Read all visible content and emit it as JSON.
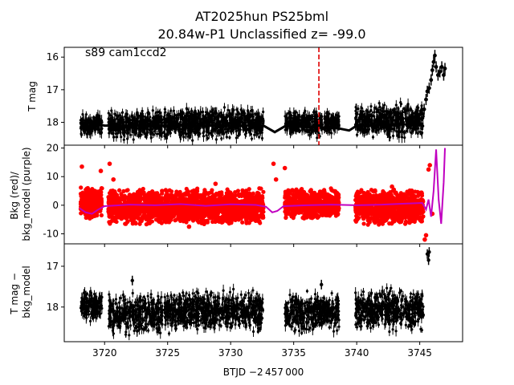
{
  "title": {
    "line1": "AT2025hun  PS25bml",
    "line2": "20.84w-P1 Unclassified z= -99.0"
  },
  "chart_data": [
    {
      "panel": "top",
      "type": "scatter",
      "annotation": "s89 cam1ccd2",
      "ylabel": "T mag",
      "inverted_y": true,
      "xlim": [
        3716.8,
        3748.4
      ],
      "ylim": [
        18.7,
        15.7
      ],
      "yticks": [
        16,
        17,
        18
      ],
      "vline": {
        "x": 3737.0,
        "color": "#e00000",
        "style": "dashed"
      },
      "color": "#000000",
      "segments": [
        {
          "x0": 3718.1,
          "x1": 3719.8,
          "min": 17.65,
          "max": 18.5
        },
        {
          "x0": 3720.3,
          "x1": 3724.6,
          "min": 17.55,
          "max": 18.6
        },
        {
          "x0": 3724.7,
          "x1": 3732.6,
          "min": 17.45,
          "max": 18.6
        },
        {
          "x0": 3734.3,
          "x1": 3737.3,
          "min": 17.55,
          "max": 18.5
        },
        {
          "x0": 3737.4,
          "x1": 3738.6,
          "min": 17.6,
          "max": 18.4
        },
        {
          "x0": 3739.9,
          "x1": 3745.3,
          "min": 17.3,
          "max": 18.6
        }
      ],
      "trend": [
        {
          "x": 3718.0,
          "y": 18.02
        },
        {
          "x": 3719.0,
          "y": 18.02
        },
        {
          "x": 3720.0,
          "y": 18.1
        },
        {
          "x": 3724.0,
          "y": 18.1
        },
        {
          "x": 3732.6,
          "y": 18.1
        },
        {
          "x": 3733.5,
          "y": 18.3
        },
        {
          "x": 3734.3,
          "y": 18.12
        },
        {
          "x": 3738.5,
          "y": 18.18
        },
        {
          "x": 3739.4,
          "y": 18.25
        },
        {
          "x": 3740.0,
          "y": 18.1
        },
        {
          "x": 3745.3,
          "y": 18.05
        }
      ],
      "rise": [
        {
          "x": 3745.35,
          "y": 17.6
        },
        {
          "x": 3745.5,
          "y": 17.3
        },
        {
          "x": 3745.6,
          "y": 17.05
        },
        {
          "x": 3745.75,
          "y": 16.95
        },
        {
          "x": 3745.9,
          "y": 16.7
        },
        {
          "x": 3746.0,
          "y": 16.4
        },
        {
          "x": 3746.1,
          "y": 16.15
        },
        {
          "x": 3746.2,
          "y": 15.95
        },
        {
          "x": 3746.3,
          "y": 16.3
        },
        {
          "x": 3746.45,
          "y": 16.55
        },
        {
          "x": 3746.6,
          "y": 16.45
        },
        {
          "x": 3746.75,
          "y": 16.3
        },
        {
          "x": 3746.9,
          "y": 16.55
        },
        {
          "x": 3747.0,
          "y": 16.35
        }
      ]
    },
    {
      "panel": "middle",
      "type": "scatter",
      "ylabel": "Bkg (red)/\nbkg_model (purple)",
      "xlim": [
        3716.8,
        3748.4
      ],
      "ylim": [
        -13.5,
        21.0
      ],
      "yticks": [
        -10,
        0,
        10,
        20
      ],
      "series": [
        {
          "name": "Bkg (red)",
          "color": "#ff0000",
          "segments": [
            {
              "x0": 3718.1,
              "x1": 3719.8,
              "min": -5.0,
              "max": 7.0
            },
            {
              "x0": 3720.3,
              "x1": 3724.6,
              "min": -7.0,
              "max": 6.0
            },
            {
              "x0": 3724.7,
              "x1": 3732.6,
              "min": -7.0,
              "max": 6.0
            },
            {
              "x0": 3734.3,
              "x1": 3738.6,
              "min": -5.0,
              "max": 6.0
            },
            {
              "x0": 3739.9,
              "x1": 3745.3,
              "min": -7.0,
              "max": 6.0
            }
          ],
          "spikes": [
            {
              "x": 3718.2,
              "y": 13.5
            },
            {
              "x": 3719.7,
              "y": 12.0
            },
            {
              "x": 3720.4,
              "y": 14.5
            },
            {
              "x": 3720.7,
              "y": 9.0
            },
            {
              "x": 3733.4,
              "y": 14.5
            },
            {
              "x": 3733.6,
              "y": 9.0
            },
            {
              "x": 3734.3,
              "y": 13.0
            },
            {
              "x": 3728.8,
              "y": 7.5
            },
            {
              "x": 3726.7,
              "y": -7.5
            },
            {
              "x": 3742.8,
              "y": 6.5
            },
            {
              "x": 3745.4,
              "y": -12.0
            },
            {
              "x": 3745.5,
              "y": -10.5
            },
            {
              "x": 3745.7,
              "y": 12.5
            },
            {
              "x": 3745.8,
              "y": 14.0
            },
            {
              "x": 3746.0,
              "y": -3.0
            }
          ]
        },
        {
          "name": "bkg_model (purple)",
          "color": "#c000c0",
          "points": [
            {
              "x": 3718.0,
              "y": -1.0
            },
            {
              "x": 3718.5,
              "y": -2.5
            },
            {
              "x": 3719.0,
              "y": -3.0
            },
            {
              "x": 3719.5,
              "y": -1.5
            },
            {
              "x": 3720.0,
              "y": -0.3
            },
            {
              "x": 3722.0,
              "y": 0.2
            },
            {
              "x": 3724.0,
              "y": 0.0
            },
            {
              "x": 3726.0,
              "y": 0.4
            },
            {
              "x": 3728.0,
              "y": -0.2
            },
            {
              "x": 3730.0,
              "y": 0.3
            },
            {
              "x": 3732.0,
              "y": 0.1
            },
            {
              "x": 3732.8,
              "y": -0.5
            },
            {
              "x": 3733.3,
              "y": -2.5
            },
            {
              "x": 3733.7,
              "y": -2.0
            },
            {
              "x": 3734.2,
              "y": -0.3
            },
            {
              "x": 3736.0,
              "y": 0.0
            },
            {
              "x": 3738.0,
              "y": 0.2
            },
            {
              "x": 3740.0,
              "y": 0.0
            },
            {
              "x": 3742.0,
              "y": 0.2
            },
            {
              "x": 3744.0,
              "y": 0.6
            },
            {
              "x": 3745.2,
              "y": 0.8
            },
            {
              "x": 3745.5,
              "y": -1.5
            },
            {
              "x": 3745.7,
              "y": 2.0
            },
            {
              "x": 3745.9,
              "y": -4.0
            },
            {
              "x": 3746.1,
              "y": 5.0
            },
            {
              "x": 3746.3,
              "y": 19.5
            },
            {
              "x": 3746.5,
              "y": 2.0
            },
            {
              "x": 3746.7,
              "y": -6.5
            },
            {
              "x": 3746.9,
              "y": 8.0
            },
            {
              "x": 3747.0,
              "y": 20.0
            }
          ]
        }
      ]
    },
    {
      "panel": "bottom",
      "type": "scatter",
      "ylabel": "T mag −\nbkg_model",
      "inverted_y": true,
      "xlim": [
        3716.8,
        3748.4
      ],
      "ylim": [
        18.85,
        16.45
      ],
      "yticks": [
        17,
        18
      ],
      "xlabel": "BTJD −2 457 000",
      "xticks": [
        3720,
        3725,
        3730,
        3735,
        3740,
        3745
      ],
      "color": "#000000",
      "segments": [
        {
          "x0": 3718.1,
          "x1": 3719.8,
          "min": 17.5,
          "max": 18.45
        },
        {
          "x0": 3720.3,
          "x1": 3724.6,
          "min": 17.6,
          "max": 18.75
        },
        {
          "x0": 3724.7,
          "x1": 3732.6,
          "min": 17.5,
          "max": 18.75
        },
        {
          "x0": 3734.3,
          "x1": 3738.6,
          "min": 17.55,
          "max": 18.7
        },
        {
          "x0": 3739.9,
          "x1": 3745.3,
          "min": 17.45,
          "max": 18.7
        }
      ],
      "extra_points": [
        {
          "x": 3722.2,
          "y": 17.35
        },
        {
          "x": 3737.2,
          "y": 17.45
        },
        {
          "x": 3745.6,
          "y": 16.7
        },
        {
          "x": 3745.7,
          "y": 16.85
        },
        {
          "x": 3745.75,
          "y": 16.65
        }
      ]
    }
  ]
}
